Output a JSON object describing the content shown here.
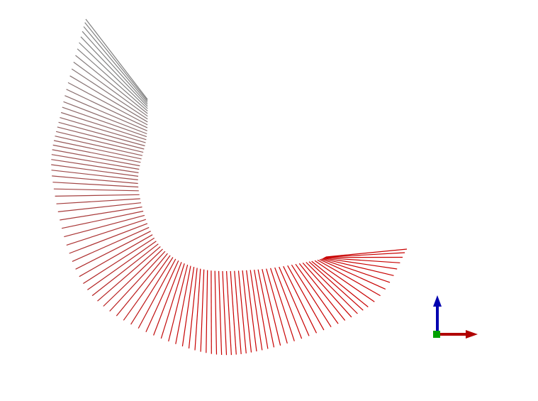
{
  "scene": {
    "background_color": "#ffffff",
    "ribbon": {
      "segment_count": 100,
      "color_start": "#808080",
      "color_end": "#c80000"
    }
  },
  "axes_triad": {
    "x_axis_color": "#b00000",
    "y_axis_color": "#00a000",
    "z_axis_color": "#0000b0"
  }
}
